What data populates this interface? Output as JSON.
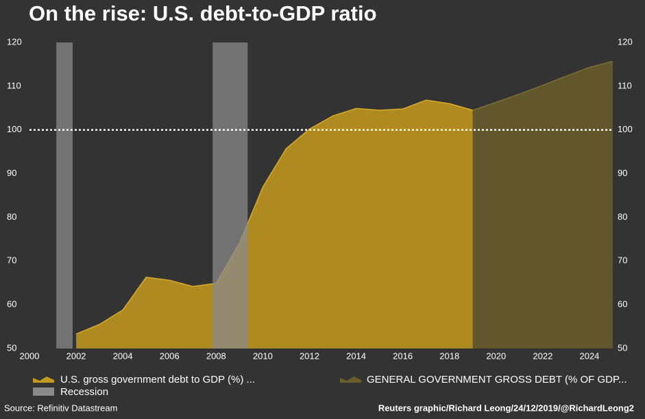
{
  "chart_data": {
    "type": "area",
    "title": "On the rise: U.S. debt-to-GDP ratio",
    "source": "Source: Refinitiv Datastream",
    "credit": "Reuters graphic/Richard Leong/24/12/2019/@RichardLeong2",
    "xlim": [
      2000,
      2025
    ],
    "xticks": [
      2000,
      2002,
      2004,
      2006,
      2008,
      2010,
      2012,
      2014,
      2016,
      2018,
      2020,
      2022,
      2024
    ],
    "ylim": [
      50,
      120
    ],
    "yticks": [
      50,
      60,
      70,
      80,
      90,
      100,
      110,
      120
    ],
    "reference_line": 100,
    "series": [
      {
        "name": "U.S. gross government debt to GDP (%) ...",
        "color": "#c49a1e",
        "x": [
          2002,
          2003,
          2004,
          2005,
          2006,
          2007,
          2008,
          2009,
          2010,
          2011,
          2012,
          2013,
          2014,
          2015,
          2016,
          2017,
          2018,
          2019
        ],
        "values": [
          53.3,
          55.5,
          58.8,
          66.3,
          65.6,
          64.2,
          64.9,
          74.1,
          86.9,
          95.7,
          100.2,
          103.2,
          104.9,
          104.5,
          104.8,
          106.8,
          106.0,
          104.5
        ]
      },
      {
        "name": "GENERAL GOVERNMENT GROSS DEBT (% OF GDP...",
        "color": "#6b5e2c",
        "x": [
          2019,
          2020,
          2021,
          2022,
          2023,
          2024,
          2025
        ],
        "values": [
          104.5,
          106.3,
          108.2,
          110.2,
          112.3,
          114.3,
          115.7
        ]
      }
    ],
    "recession": {
      "name": "Recession",
      "color": "#8a8a8a",
      "periods": [
        [
          2001.15,
          2001.85
        ],
        [
          2007.85,
          2009.35
        ]
      ]
    }
  }
}
